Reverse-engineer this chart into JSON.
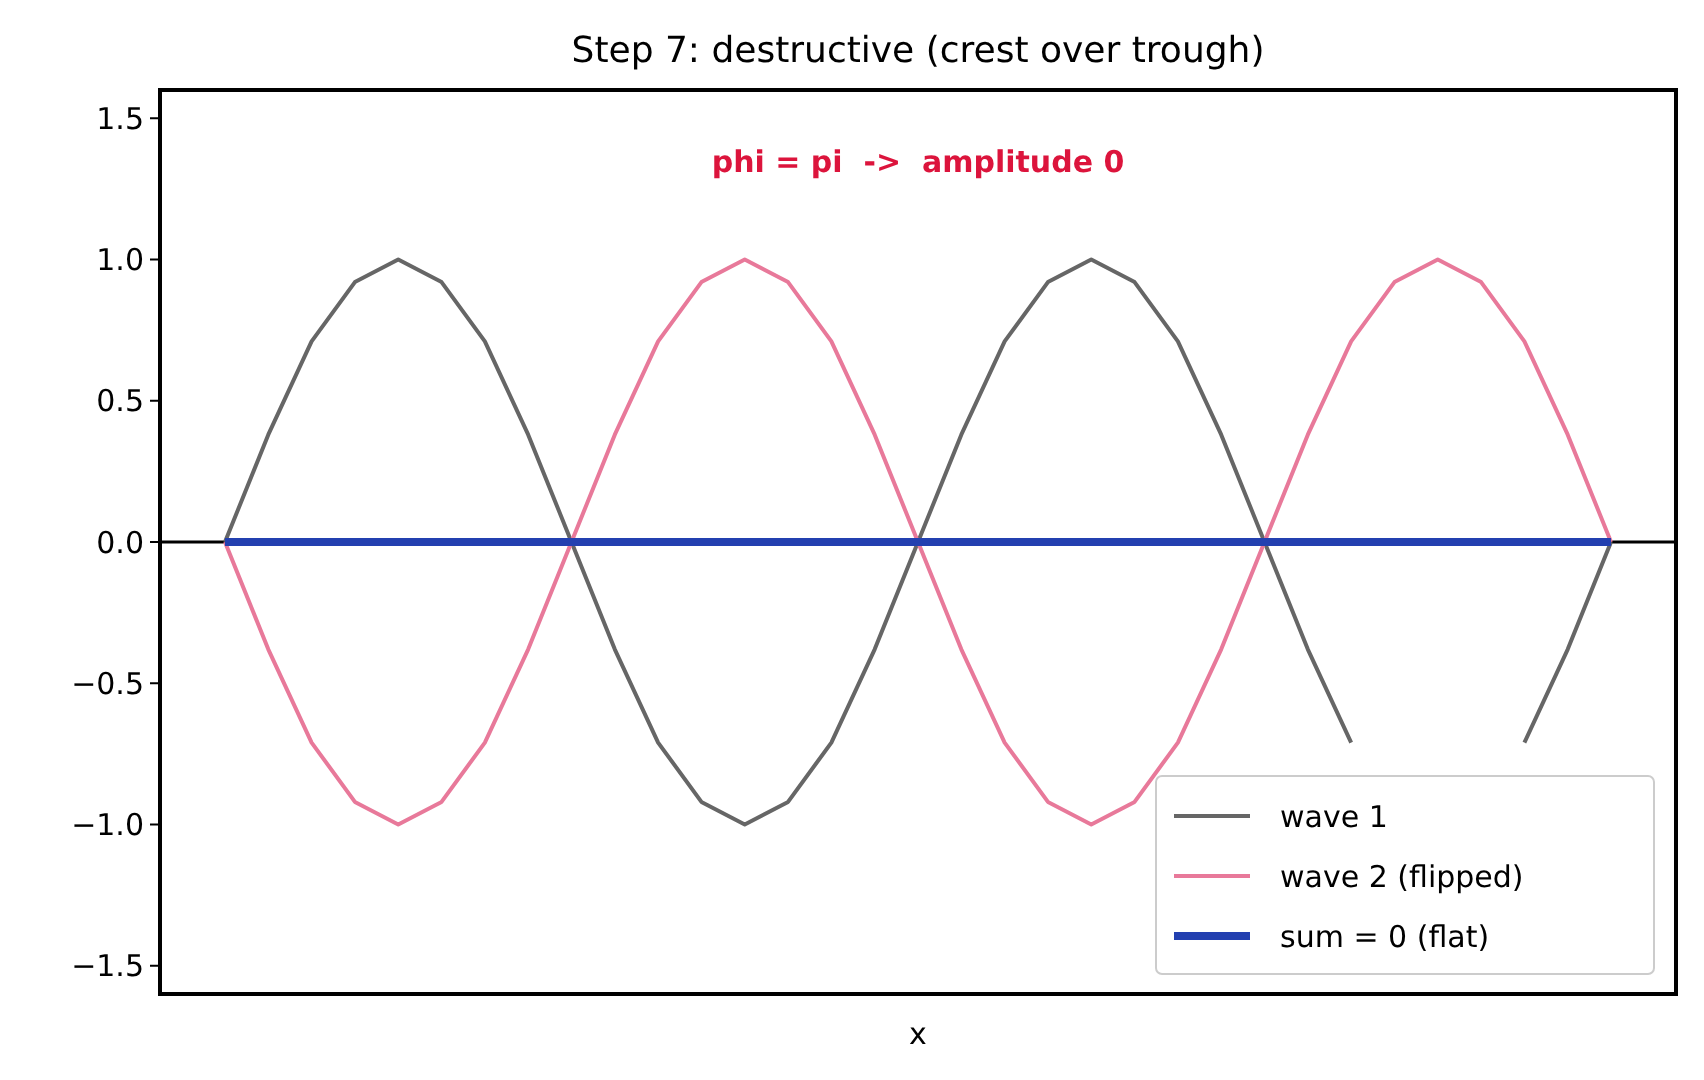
{
  "chart_data": {
    "type": "line",
    "title": "Step 7: destructive (crest over trough)",
    "xlabel": "x",
    "annotations": [
      "phi = pi  ->  amplitude 0"
    ],
    "categories": [
      null,
      null,
      null,
      null,
      null,
      null,
      null,
      null,
      null,
      null,
      null,
      null,
      null,
      null,
      null,
      null,
      null,
      null,
      null,
      null,
      null,
      null,
      null,
      null,
      null,
      null,
      null,
      null,
      null,
      null,
      null,
      null,
      null
    ],
    "series": [
      {
        "name": "wave 1",
        "color": "#666666",
        "values": [
          0,
          0.38,
          0.71,
          0.92,
          1,
          0.92,
          0.71,
          0.38,
          0,
          -0.38,
          -0.71,
          -0.92,
          -1,
          -0.92,
          -0.71,
          -0.38,
          0,
          0.38,
          0.71,
          0.92,
          1,
          0.92,
          0.71,
          0.38,
          0,
          -0.38,
          -0.71,
          null,
          null,
          null,
          -0.71,
          -0.38,
          0
        ]
      },
      {
        "name": "wave 2 (flipped)",
        "color": "#e8799a",
        "values": [
          0,
          -0.38,
          -0.71,
          -0.92,
          -1,
          -0.92,
          -0.71,
          -0.38,
          0,
          0.38,
          0.71,
          0.92,
          1,
          0.92,
          0.71,
          0.38,
          0,
          -0.38,
          -0.71,
          -0.92,
          -1,
          -0.92,
          -0.71,
          -0.38,
          0,
          0.38,
          0.71,
          0.92,
          1,
          0.92,
          0.71,
          0.38,
          0
        ]
      },
      {
        "name": "sum = 0 (flat)",
        "color": "#2340b0",
        "values": [
          0,
          0,
          0,
          0,
          0,
          0,
          0,
          0,
          0,
          0,
          0,
          0,
          0,
          0,
          0,
          0,
          0,
          0,
          0,
          0,
          0,
          0,
          0,
          0,
          0,
          0,
          0,
          0,
          0,
          0,
          0,
          0,
          0
        ]
      }
    ],
    "ylim": [
      -1.6,
      1.6
    ],
    "yticks": [
      {
        "value": -1.5,
        "label": "−1.5"
      },
      {
        "value": -1,
        "label": "−1.0"
      },
      {
        "value": -0.5,
        "label": "−0.5"
      },
      {
        "value": 0,
        "label": "0.0"
      },
      {
        "value": 0.5,
        "label": "0.5"
      },
      {
        "value": 1,
        "label": "1.0"
      },
      {
        "value": 1.5,
        "label": "1.5"
      }
    ],
    "ref_lines": [
      {
        "axis": "y",
        "value": 0,
        "color": "#000000"
      }
    ],
    "tick_labels": "y",
    "legend": "bottom right",
    "grid": false,
    "marker": "none",
    "line_style": "solid"
  }
}
